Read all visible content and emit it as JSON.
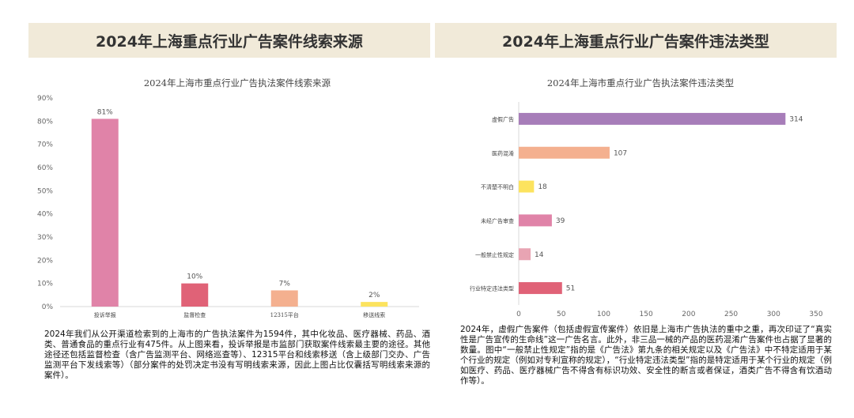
{
  "left": {
    "banner": "2024年上海重点行业广告案件线索来源",
    "paragraph": "2024年我们从公开渠道检索到的上海市的广告执法案件为1594件，其中化妆品、医疗器械、药品、酒类、普通食品的重点行业有475件。从上图来看，投诉举报是市监部门获取案件线索最主要的途径。其他途径还包括监督检查（含广告监测平台、网络巡查等）、12315平台和线索移送（含上级部门交办、广告监测平台下发线索等）（部分案件的处罚决定书没有写明线索来源，因此上图占比仅囊括写明线索来源的案件）。"
  },
  "right": {
    "banner": "2024年上海重点行业广告案件违法类型",
    "paragraph": "2024年，虚假广告案件（包括虚假宣传案件）依旧是上海市广告执法的重中之重，再次印证了“真实性是广告宣传的生命线”这一广告名言。此外，非三品一械的产品的医药混淆广告案件也占据了显著的数量。图中“一般禁止性规定”指的是《广告法》第九条的相关规定以及《广告法》中不特定适用于某个行业的规定（例如对专利宣称的规定），“行业特定违法类型”指的是特定适用于某个行业的规定（例如医疗、药品、医疗器械广告不得含有标识功效、安全性的断言或者保证，酒类广告不得含有饮酒动作等）。"
  },
  "chart_data": [
    {
      "type": "bar",
      "orientation": "vertical",
      "title": "2024年上海市重点行业广告执法案件线索来源",
      "categories": [
        "投诉举报",
        "监督检查",
        "12315平台",
        "移送线索"
      ],
      "values": [
        81,
        10,
        7,
        2
      ],
      "value_labels": [
        "81%",
        "10%",
        "7%",
        "2%"
      ],
      "colors": [
        "#e083a8",
        "#e06277",
        "#f4b08f",
        "#fce35e"
      ],
      "ylim": [
        0,
        90
      ],
      "yticks": [
        0,
        10,
        20,
        30,
        40,
        50,
        60,
        70,
        80,
        90
      ],
      "ytick_labels": [
        "0%",
        "10%",
        "20%",
        "30%",
        "40%",
        "50%",
        "60%",
        "70%",
        "80%",
        "90%"
      ],
      "xlabel": "",
      "ylabel": "",
      "grid": false
    },
    {
      "type": "bar",
      "orientation": "horizontal",
      "title": "2024年上海市重点行业广告执法案件违法类型",
      "categories": [
        "虚假广告",
        "医药混淆",
        "不清楚不明白",
        "未经广告审查",
        "一般禁止性规定",
        "行业特定违法类型"
      ],
      "values": [
        314,
        107,
        18,
        39,
        14,
        51
      ],
      "colors": [
        "#a77db9",
        "#f4b08f",
        "#fce35e",
        "#e083a8",
        "#e8a4b3",
        "#e06277"
      ],
      "xlim": [
        0,
        350
      ],
      "xticks": [
        0,
        50,
        100,
        150,
        200,
        250,
        300,
        350
      ],
      "xlabel": "",
      "ylabel": "",
      "grid": false
    }
  ]
}
